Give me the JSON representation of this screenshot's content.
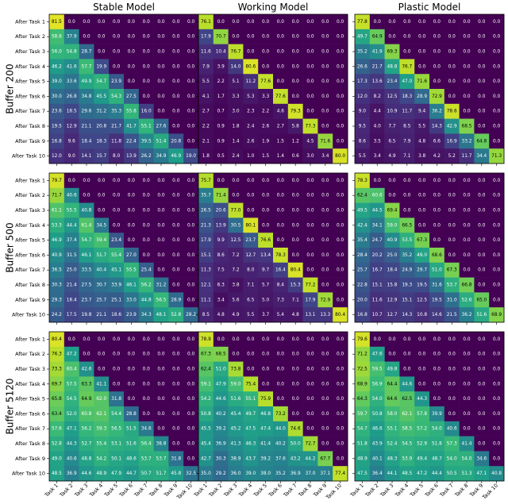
{
  "chart_data": {
    "type": "heatmap",
    "column_titles": [
      "Stable Model",
      "Working Model",
      "Plastic Model"
    ],
    "row_titles": [
      "Buffer 200",
      "Buffer 500",
      "Buffer 5120"
    ],
    "y_labels": [
      "After Task 1",
      "After Task 2",
      "After Task 3",
      "After Task 4",
      "After Task 5",
      "After Task 6",
      "After Task 7",
      "After Task 8",
      "After Task 9",
      "After Task 10"
    ],
    "x_labels": [
      "Task 1",
      "Task 2",
      "Task 3",
      "Task 4",
      "Task 5",
      "Task 6",
      "Task 7",
      "Task 8",
      "Task 9",
      "Task 10"
    ],
    "colormap": [
      "#440154",
      "#482878",
      "#3e4989",
      "#31688e",
      "#26828e",
      "#1f9e89",
      "#35b779",
      "#6ece58",
      "#b5de2b",
      "#fde725"
    ],
    "vmin": 0,
    "vmax": 85,
    "panels": [
      {
        "row": 0,
        "col": 0,
        "values": [
          [
            81.5,
            0.0,
            0.0,
            0.0,
            0.0,
            0.0,
            0.0,
            0.0,
            0.0,
            0.0
          ],
          [
            58.6,
            37.9,
            0.0,
            0.0,
            0.0,
            0.0,
            0.0,
            0.0,
            0.0,
            0.0
          ],
          [
            56.0,
            54.8,
            28.7,
            0.0,
            0.0,
            0.0,
            0.0,
            0.0,
            0.0,
            0.0
          ],
          [
            46.2,
            41.6,
            57.7,
            19.9,
            0.0,
            0.0,
            0.0,
            0.0,
            0.0,
            0.0
          ],
          [
            39.0,
            33.6,
            49.9,
            54.7,
            23.9,
            0.0,
            0.0,
            0.0,
            0.0,
            0.0
          ],
          [
            30.0,
            26.8,
            34.8,
            45.5,
            54.3,
            27.5,
            0.0,
            0.0,
            0.0,
            0.0
          ],
          [
            23.6,
            18.5,
            29.6,
            31.2,
            35.3,
            55.8,
            16.0,
            0.0,
            0.0,
            0.0
          ],
          [
            19.5,
            12.9,
            21.1,
            20.8,
            21.7,
            41.7,
            55.1,
            27.6,
            0.0,
            0.0
          ],
          [
            16.8,
            9.6,
            18.4,
            18.3,
            11.8,
            22.4,
            39.5,
            51.4,
            20.8,
            0.0
          ],
          [
            12.0,
            9.0,
            14.1,
            15.7,
            8.0,
            13.9,
            26.2,
            34.9,
            46.9,
            19.0
          ]
        ]
      },
      {
        "row": 0,
        "col": 1,
        "values": [
          [
            76.1,
            0.0,
            0.0,
            0.0,
            0.0,
            0.0,
            0.0,
            0.0,
            0.0,
            0.0
          ],
          [
            17.9,
            70.7,
            0.0,
            0.0,
            0.0,
            0.0,
            0.0,
            0.0,
            0.0,
            0.0
          ],
          [
            11.6,
            10.4,
            76.7,
            0.0,
            0.0,
            0.0,
            0.0,
            0.0,
            0.0,
            0.0
          ],
          [
            7.9,
            3.9,
            14.0,
            80.6,
            0.0,
            0.0,
            0.0,
            0.0,
            0.0,
            0.0
          ],
          [
            5.5,
            2.2,
            5.1,
            11.2,
            77.6,
            0.0,
            0.0,
            0.0,
            0.0,
            0.0
          ],
          [
            4.1,
            1.7,
            3.3,
            5.3,
            3.3,
            77.6,
            0.0,
            0.0,
            0.0,
            0.0
          ],
          [
            2.7,
            0.7,
            3.0,
            2.3,
            2.2,
            4.6,
            79.3,
            0.0,
            0.0,
            0.0
          ],
          [
            2.2,
            0.9,
            1.8,
            2.4,
            2.6,
            2.7,
            5.8,
            77.3,
            0.0,
            0.0
          ],
          [
            2.1,
            0.9,
            1.4,
            2.6,
            1.9,
            1.5,
            1.2,
            4.5,
            71.6,
            0.0
          ],
          [
            1.8,
            0.5,
            2.4,
            1.0,
            1.5,
            1.4,
            0.6,
            3.0,
            3.4,
            80.0
          ]
        ]
      },
      {
        "row": 0,
        "col": 2,
        "values": [
          [
            77.8,
            0.0,
            0.0,
            0.0,
            0.0,
            0.0,
            0.0,
            0.0,
            0.0,
            0.0
          ],
          [
            49.7,
            64.9,
            0.0,
            0.0,
            0.0,
            0.0,
            0.0,
            0.0,
            0.0,
            0.0
          ],
          [
            35.2,
            41.9,
            69.3,
            0.0,
            0.0,
            0.0,
            0.0,
            0.0,
            0.0,
            0.0
          ],
          [
            26.6,
            21.7,
            48.8,
            76.7,
            0.0,
            0.0,
            0.0,
            0.0,
            0.0,
            0.0
          ],
          [
            17.3,
            13.6,
            23.4,
            47.0,
            71.6,
            0.0,
            0.0,
            0.0,
            0.0,
            0.0
          ],
          [
            12.0,
            8.2,
            12.5,
            18.3,
            28.9,
            72.9,
            0.0,
            0.0,
            0.0,
            0.0
          ],
          [
            9.0,
            4.4,
            10.9,
            11.7,
            9.4,
            36.2,
            78.6,
            0.0,
            0.0,
            0.0
          ],
          [
            9.5,
            4.0,
            7.7,
            8.5,
            5.5,
            14.3,
            42.9,
            68.5,
            0.0,
            0.0
          ],
          [
            8.6,
            3.5,
            6.5,
            7.9,
            4.8,
            6.6,
            16.9,
            33.2,
            64.8,
            0.0
          ],
          [
            5.5,
            3.4,
            4.9,
            7.1,
            3.8,
            4.2,
            5.2,
            11.7,
            34.4,
            71.3
          ]
        ]
      },
      {
        "row": 1,
        "col": 0,
        "values": [
          [
            79.7,
            0.0,
            0.0,
            0.0,
            0.0,
            0.0,
            0.0,
            0.0,
            0.0,
            0.0
          ],
          [
            71.7,
            40.6,
            0.0,
            0.0,
            0.0,
            0.0,
            0.0,
            0.0,
            0.0,
            0.0
          ],
          [
            61.1,
            55.5,
            40.8,
            0.0,
            0.0,
            0.0,
            0.0,
            0.0,
            0.0,
            0.0
          ],
          [
            53.3,
            44.4,
            61.4,
            34.5,
            0.0,
            0.0,
            0.0,
            0.0,
            0.0,
            0.0
          ],
          [
            46.9,
            37.4,
            54.7,
            59.4,
            23.4,
            0.0,
            0.0,
            0.0,
            0.0,
            0.0
          ],
          [
            40.9,
            31.5,
            46.1,
            51.7,
            55.4,
            27.0,
            0.0,
            0.0,
            0.0,
            0.0
          ],
          [
            36.5,
            25.0,
            33.5,
            40.4,
            45.1,
            55.5,
            25.4,
            0.0,
            0.0,
            0.0
          ],
          [
            30.3,
            21.4,
            27.5,
            30.7,
            33.9,
            46.1,
            56.2,
            31.2,
            0.0,
            0.0
          ],
          [
            29.3,
            18.4,
            23.7,
            25.7,
            25.1,
            33.0,
            44.8,
            56.5,
            28.9,
            0.0
          ],
          [
            24.2,
            17.5,
            19.8,
            21.1,
            18.6,
            23.9,
            34.3,
            48.1,
            52.8,
            28.2
          ]
        ]
      },
      {
        "row": 1,
        "col": 1,
        "values": [
          [
            75.7,
            0.0,
            0.0,
            0.0,
            0.0,
            0.0,
            0.0,
            0.0,
            0.0,
            0.0
          ],
          [
            35.7,
            71.4,
            0.0,
            0.0,
            0.0,
            0.0,
            0.0,
            0.0,
            0.0,
            0.0
          ],
          [
            26.5,
            20.6,
            77.0,
            0.0,
            0.0,
            0.0,
            0.0,
            0.0,
            0.0,
            0.0
          ],
          [
            21.3,
            13.9,
            30.5,
            80.1,
            0.0,
            0.0,
            0.0,
            0.0,
            0.0,
            0.0
          ],
          [
            17.9,
            9.9,
            12.5,
            23.7,
            76.6,
            0.0,
            0.0,
            0.0,
            0.0,
            0.0
          ],
          [
            15.1,
            8.6,
            7.2,
            12.7,
            13.4,
            78.3,
            0.0,
            0.0,
            0.0,
            0.0
          ],
          [
            11.3,
            7.5,
            7.2,
            8.0,
            9.7,
            16.4,
            80.4,
            0.0,
            0.0,
            0.0
          ],
          [
            12.1,
            6.3,
            3.8,
            7.1,
            5.7,
            8.4,
            15.3,
            77.2,
            0.0,
            0.0
          ],
          [
            11.1,
            3.4,
            5.6,
            6.5,
            5.0,
            7.3,
            7.1,
            17.9,
            72.9,
            0.0
          ],
          [
            8.5,
            4.8,
            4.9,
            5.5,
            3.7,
            5.4,
            4.8,
            13.1,
            13.3,
            80.4
          ]
        ]
      },
      {
        "row": 1,
        "col": 2,
        "values": [
          [
            78.3,
            0.0,
            0.0,
            0.0,
            0.0,
            0.0,
            0.0,
            0.0,
            0.0,
            0.0
          ],
          [
            62.4,
            60.6,
            0.0,
            0.0,
            0.0,
            0.0,
            0.0,
            0.0,
            0.0,
            0.0
          ],
          [
            49.5,
            44.5,
            69.4,
            0.0,
            0.0,
            0.0,
            0.0,
            0.0,
            0.0,
            0.0
          ],
          [
            42.4,
            34.1,
            59.0,
            66.5,
            0.0,
            0.0,
            0.0,
            0.0,
            0.0,
            0.0
          ],
          [
            35.4,
            24.7,
            40.9,
            53.5,
            67.3,
            0.0,
            0.0,
            0.0,
            0.0,
            0.0
          ],
          [
            28.4,
            20.2,
            25.0,
            35.2,
            49.0,
            68.6,
            0.0,
            0.0,
            0.0,
            0.0
          ],
          [
            25.7,
            16.7,
            18.4,
            24.9,
            29.7,
            51.0,
            67.3,
            0.0,
            0.0,
            0.0
          ],
          [
            22.8,
            15.1,
            15.8,
            19.3,
            19.5,
            31.6,
            53.7,
            66.8,
            0.0,
            0.0
          ],
          [
            20.0,
            11.6,
            12.9,
            15.1,
            12.5,
            19.5,
            31.0,
            52.6,
            65.0,
            0.0
          ],
          [
            16.8,
            10.7,
            12.7,
            14.3,
            10.8,
            14.6,
            21.5,
            36.2,
            51.6,
            68.9
          ]
        ]
      },
      {
        "row": 2,
        "col": 0,
        "values": [
          [
            80.4,
            0.0,
            0.0,
            0.0,
            0.0,
            0.0,
            0.0,
            0.0,
            0.0,
            0.0
          ],
          [
            76.3,
            47.2,
            0.0,
            0.0,
            0.0,
            0.0,
            0.0,
            0.0,
            0.0,
            0.0
          ],
          [
            73.3,
            60.4,
            42.6,
            0.0,
            0.0,
            0.0,
            0.0,
            0.0,
            0.0,
            0.0
          ],
          [
            69.7,
            57.5,
            63.3,
            41.1,
            0.0,
            0.0,
            0.0,
            0.0,
            0.0,
            0.0
          ],
          [
            65.8,
            54.5,
            64.9,
            62.0,
            31.8,
            0.0,
            0.0,
            0.0,
            0.0,
            0.0
          ],
          [
            63.4,
            52.0,
            60.8,
            62.1,
            54.4,
            28.8,
            0.0,
            0.0,
            0.0,
            0.0
          ],
          [
            57.6,
            47.1,
            56.2,
            59.3,
            56.5,
            51.5,
            34.6,
            0.0,
            0.0,
            0.0
          ],
          [
            52.8,
            44.3,
            52.7,
            55.4,
            53.1,
            51.6,
            56.4,
            38.8,
            0.0,
            0.0
          ],
          [
            49.0,
            40.6,
            48.8,
            54.2,
            50.1,
            48.6,
            53.7,
            53.7,
            31.8,
            0.0
          ],
          [
            48.5,
            36.9,
            44.6,
            48.9,
            47.9,
            44.7,
            50.7,
            51.7,
            45.8,
            32.5
          ]
        ]
      },
      {
        "row": 2,
        "col": 1,
        "values": [
          [
            78.9,
            0.0,
            0.0,
            0.0,
            0.0,
            0.0,
            0.0,
            0.0,
            0.0,
            0.0
          ],
          [
            67.3,
            68.5,
            0.0,
            0.0,
            0.0,
            0.0,
            0.0,
            0.0,
            0.0,
            0.0
          ],
          [
            62.4,
            51.0,
            73.8,
            0.0,
            0.0,
            0.0,
            0.0,
            0.0,
            0.0,
            0.0
          ],
          [
            59.1,
            47.9,
            59.0,
            75.4,
            0.0,
            0.0,
            0.0,
            0.0,
            0.0,
            0.0
          ],
          [
            54.2,
            44.6,
            51.6,
            55.1,
            75.9,
            0.0,
            0.0,
            0.0,
            0.0,
            0.0
          ],
          [
            50.8,
            40.2,
            45.4,
            49.7,
            46.8,
            73.2,
            0.0,
            0.0,
            0.0,
            0.0
          ],
          [
            45.5,
            39.2,
            45.2,
            47.5,
            47.4,
            44.0,
            74.6,
            0.0,
            0.0,
            0.0
          ],
          [
            45.4,
            36.9,
            41.3,
            46.3,
            41.4,
            40.2,
            50.0,
            72.7,
            0.0,
            0.0
          ],
          [
            42.7,
            30.3,
            38.9,
            43.7,
            39.2,
            37.6,
            43.2,
            44.2,
            67.7,
            0.0
          ],
          [
            35.0,
            29.2,
            36.0,
            39.0,
            38.0,
            35.2,
            36.9,
            37.0,
            37.1,
            77.4
          ]
        ]
      },
      {
        "row": 2,
        "col": 2,
        "values": [
          [
            79.6,
            0.0,
            0.0,
            0.0,
            0.0,
            0.0,
            0.0,
            0.0,
            0.0,
            0.0
          ],
          [
            71.2,
            47.6,
            0.0,
            0.0,
            0.0,
            0.0,
            0.0,
            0.0,
            0.0,
            0.0
          ],
          [
            72.5,
            59.5,
            49.8,
            0.0,
            0.0,
            0.0,
            0.0,
            0.0,
            0.0,
            0.0
          ],
          [
            68.9,
            56.9,
            64.4,
            44.6,
            0.0,
            0.0,
            0.0,
            0.0,
            0.0,
            0.0
          ],
          [
            64.3,
            54.0,
            64.6,
            62.5,
            44.3,
            0.0,
            0.0,
            0.0,
            0.0,
            0.0
          ],
          [
            59.7,
            50.8,
            58.0,
            62.1,
            57.8,
            39.9,
            0.0,
            0.0,
            0.0,
            0.0
          ],
          [
            54.7,
            46.6,
            55.1,
            58.5,
            57.2,
            54.0,
            40.6,
            0.0,
            0.0,
            0.0
          ],
          [
            51.8,
            43.9,
            52.4,
            54.5,
            52.9,
            51.8,
            57.3,
            41.4,
            0.0,
            0.0
          ],
          [
            48.9,
            40.1,
            48.3,
            53.9,
            49.4,
            48.7,
            54.0,
            54.0,
            34.6,
            0.0
          ],
          [
            47.5,
            36.4,
            44.1,
            48.5,
            47.2,
            44.4,
            50.5,
            51.3,
            47.1,
            40.8
          ]
        ]
      }
    ]
  }
}
